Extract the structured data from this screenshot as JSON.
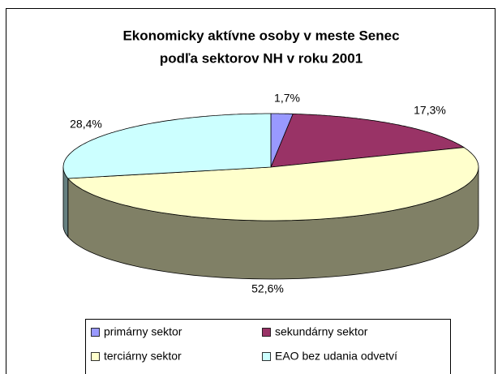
{
  "chart_data": {
    "type": "pie",
    "title": [
      "Ekonomicky aktívne osoby v meste Senec",
      "podľa sektorov NH v roku 2001"
    ],
    "categories": [
      "primárny sektor",
      "sekundárny sektor",
      "terciárny sektor",
      "EAO bez udania odvetví"
    ],
    "values": [
      1.7,
      17.3,
      52.6,
      28.4
    ],
    "value_labels": [
      "1,7%",
      "17,3%",
      "52,6%",
      "28,4%"
    ],
    "colors": [
      "#9999ff",
      "#993366",
      "#ffffcc",
      "#ccffff"
    ]
  }
}
